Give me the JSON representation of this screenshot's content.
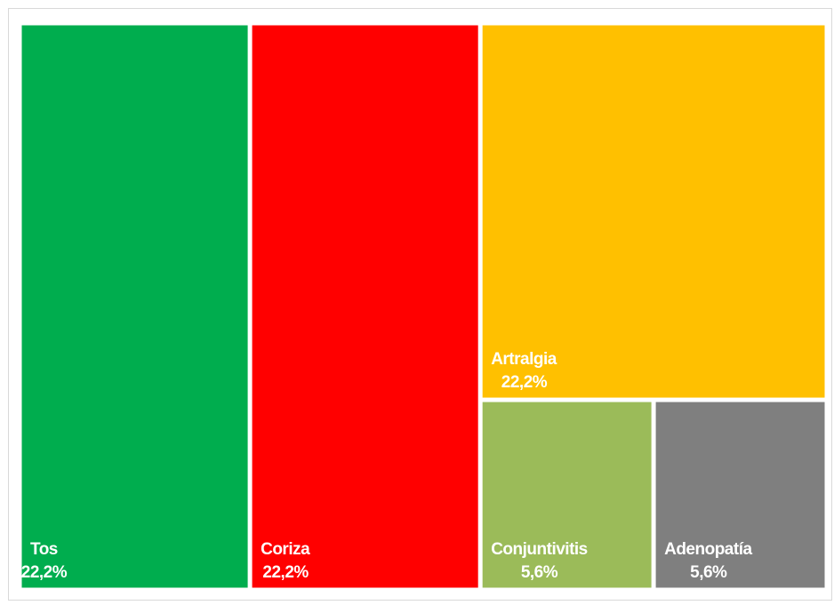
{
  "chart_data": {
    "type": "treemap",
    "categories": [
      "Tos",
      "Coriza",
      "Artralgia",
      "Conjuntivitis",
      "Adenopatía"
    ],
    "values": [
      22.2,
      22.2,
      22.2,
      5.6,
      5.6
    ],
    "value_labels": [
      "22,2%",
      "22,2%",
      "22,2%",
      "5,6%",
      "5,6%"
    ],
    "colors": [
      "#00ad4e",
      "#ff0000",
      "#ffc000",
      "#9bbb59",
      "#7f7f7f"
    ]
  }
}
